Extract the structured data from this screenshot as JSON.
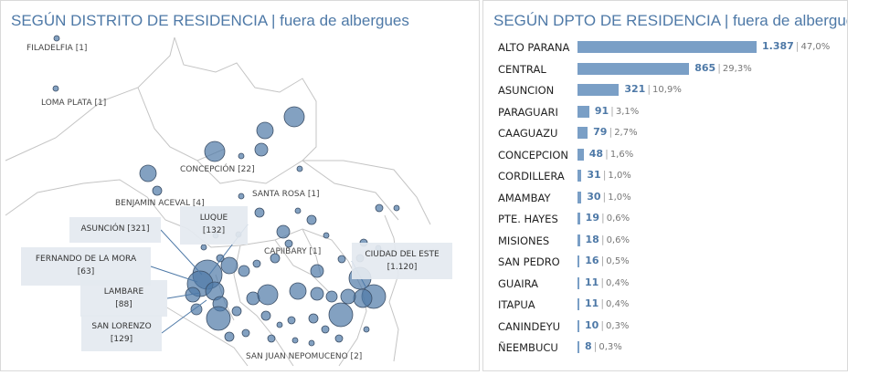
{
  "map_panel": {
    "title": "SEGÚN DISTRITO DE RESIDENCIA | fuera de albergues",
    "place_labels": [
      {
        "id": "filadelfia",
        "text": "FILADELFIA [1]"
      },
      {
        "id": "loma-plata",
        "text": "LOMA PLATA [1]"
      },
      {
        "id": "concepcion",
        "text": "CONCEPCIÓN [22]"
      },
      {
        "id": "benjamin-aceval",
        "text": "BENJAMIN ACEVAL [4]"
      },
      {
        "id": "santa-rosa",
        "text": "SANTA ROSA [1]"
      },
      {
        "id": "capiibary",
        "text": "CAPIIBARY [1]"
      },
      {
        "id": "san-juan-nepomuceno",
        "text": "SAN JUAN NEPOMUCENO [2]"
      }
    ],
    "callouts": [
      {
        "id": "asuncion",
        "name": "ASUNCIÓN [321]",
        "value": ""
      },
      {
        "id": "luque",
        "name": "LUQUE",
        "value": "[132]"
      },
      {
        "id": "fernando-de-la-mora",
        "name": "FERNANDO DE LA MORA",
        "value": "[63]"
      },
      {
        "id": "lambare",
        "name": "LAMBARE",
        "value": "[88]"
      },
      {
        "id": "san-lorenzo",
        "name": "SAN LORENZO",
        "value": "[129]"
      },
      {
        "id": "ciudad-del-este",
        "name": "CIUDAD DEL ESTE",
        "value": "[1.120]"
      }
    ],
    "colors": {
      "bubble": "#4e79a7",
      "bubble_stroke": "#3b4e66",
      "boundary": "#c4c4c4"
    }
  },
  "bar_panel": {
    "title": "SEGÚN DPTO DE RESIDENCIA | fuera de albergues",
    "colors": {
      "bar": "#7a9fc6",
      "value": "#4e79a7"
    }
  },
  "chart_data": {
    "type": "bar",
    "orientation": "horizontal",
    "title": "SEGÚN DPTO DE RESIDENCIA | fuera de albergues",
    "categories": [
      "ALTO PARANA",
      "CENTRAL",
      "ASUNCION",
      "PARAGUARI",
      "CAAGUAZU",
      "CONCEPCION",
      "CORDILLERA",
      "AMAMBAY",
      "PTE. HAYES",
      "MISIONES",
      "SAN PEDRO",
      "GUAIRA",
      "ITAPUA",
      "CANINDEYU",
      "ÑEEMBUCU"
    ],
    "values": [
      1387,
      865,
      321,
      91,
      79,
      48,
      31,
      30,
      19,
      18,
      16,
      11,
      11,
      10,
      8
    ],
    "value_labels": [
      "1.387",
      "865",
      "321",
      "91",
      "79",
      "48",
      "31",
      "30",
      "19",
      "18",
      "16",
      "11",
      "11",
      "10",
      "8"
    ],
    "percent_labels": [
      "47,0%",
      "29,3%",
      "10,9%",
      "3,1%",
      "2,7%",
      "1,6%",
      "1,0%",
      "1,0%",
      "0,6%",
      "0,6%",
      "0,5%",
      "0,4%",
      "0,4%",
      "0,3%",
      "0,3%"
    ],
    "xlim": [
      0,
      1387
    ]
  }
}
